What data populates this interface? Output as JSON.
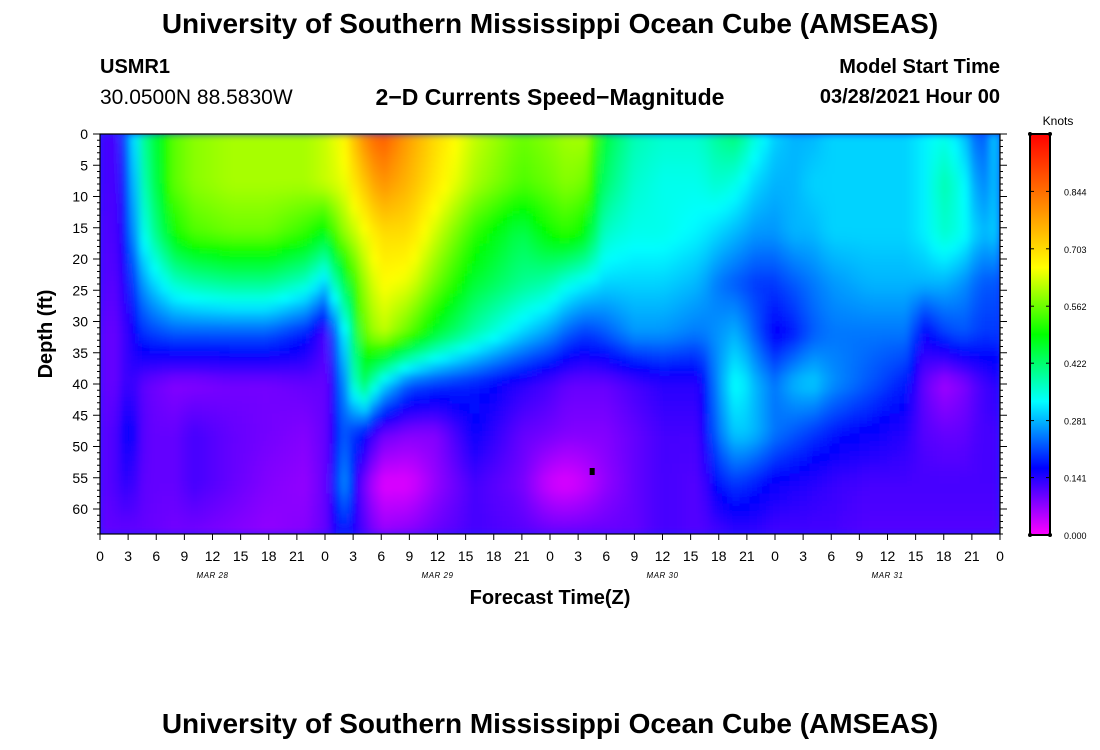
{
  "header": {
    "title": "University of Southern Mississippi Ocean Cube (AMSEAS)",
    "station_id": "USMR1",
    "station_coords": "30.0500N  88.5830W",
    "chart_title": "2−D Currents Speed−Magnitude",
    "start_label": "Model Start Time",
    "start_value": "03/28/2021 Hour 00"
  },
  "footer": {
    "title": "University of Southern Mississippi Ocean Cube (AMSEAS)"
  },
  "chart_data": {
    "type": "heatmap",
    "title": "2−D Currents Speed−Magnitude",
    "xlabel": "Forecast Time(Z)",
    "ylabel": "Depth (ft)",
    "x_range_hours": [
      0,
      96
    ],
    "x_tick_step_hours": 3,
    "x_tick_labels": [
      "0",
      "3",
      "6",
      "9",
      "12",
      "15",
      "18",
      "21",
      "0",
      "3",
      "6",
      "9",
      "12",
      "15",
      "18",
      "21",
      "0",
      "3",
      "6",
      "9",
      "12",
      "15",
      "18",
      "21",
      "0",
      "3",
      "6",
      "9",
      "12",
      "15",
      "18",
      "21",
      "0"
    ],
    "date_labels": [
      {
        "label": "MAR 28",
        "hour": 12
      },
      {
        "label": "MAR 29",
        "hour": 36
      },
      {
        "label": "MAR 30",
        "hour": 60
      },
      {
        "label": "MAR 31",
        "hour": 84
      }
    ],
    "y_range_ft": [
      0,
      64
    ],
    "y_ticks": [
      0,
      5,
      10,
      15,
      20,
      25,
      30,
      35,
      40,
      45,
      50,
      55,
      60
    ],
    "colorbar": {
      "unit": "Knots",
      "range": [
        0.0,
        0.985
      ],
      "tick_values": [
        0.0,
        0.141,
        0.281,
        0.422,
        0.562,
        0.703,
        0.844
      ],
      "tick_labels": [
        "0.000",
        "0.141",
        "0.281",
        "0.422",
        "0.562",
        "0.703",
        "0.844"
      ],
      "colormap": [
        "#ff00ff",
        "#0000ff",
        "#00ffff",
        "#00ff00",
        "#ffff00",
        "#ff8000",
        "#ff0000"
      ]
    },
    "depths_ft": [
      0,
      8,
      16,
      24,
      32,
      40,
      48,
      56,
      64
    ],
    "times_h": [
      0,
      2,
      3,
      5,
      8,
      10,
      14,
      18,
      22,
      24,
      26,
      28,
      30,
      33,
      36,
      40,
      45,
      48,
      50,
      52,
      54,
      57,
      60,
      64,
      66,
      68,
      70,
      72,
      74,
      76,
      78,
      82,
      86,
      88,
      90,
      92,
      94,
      96
    ],
    "speed_knots": [
      [
        0.12,
        0.12,
        0.25,
        0.42,
        0.55,
        0.58,
        0.6,
        0.6,
        0.6,
        0.62,
        0.66,
        0.8,
        0.88,
        0.78,
        0.7,
        0.62,
        0.56,
        0.58,
        0.6,
        0.6,
        0.45,
        0.38,
        0.36,
        0.36,
        0.4,
        0.42,
        0.35,
        0.3,
        0.28,
        0.28,
        0.3,
        0.3,
        0.3,
        0.32,
        0.34,
        0.3,
        0.2,
        0.32
      ],
      [
        0.12,
        0.12,
        0.22,
        0.4,
        0.55,
        0.58,
        0.6,
        0.6,
        0.6,
        0.62,
        0.64,
        0.72,
        0.8,
        0.75,
        0.68,
        0.6,
        0.54,
        0.56,
        0.58,
        0.56,
        0.42,
        0.36,
        0.34,
        0.34,
        0.36,
        0.34,
        0.3,
        0.28,
        0.28,
        0.3,
        0.3,
        0.3,
        0.3,
        0.32,
        0.38,
        0.34,
        0.24,
        0.3
      ],
      [
        0.11,
        0.12,
        0.2,
        0.36,
        0.5,
        0.54,
        0.56,
        0.56,
        0.52,
        0.48,
        0.58,
        0.64,
        0.7,
        0.7,
        0.62,
        0.52,
        0.44,
        0.5,
        0.52,
        0.48,
        0.36,
        0.34,
        0.34,
        0.32,
        0.3,
        0.28,
        0.26,
        0.26,
        0.28,
        0.28,
        0.3,
        0.3,
        0.3,
        0.32,
        0.36,
        0.34,
        0.28,
        0.3
      ],
      [
        0.11,
        0.11,
        0.16,
        0.28,
        0.36,
        0.38,
        0.4,
        0.4,
        0.36,
        0.3,
        0.44,
        0.58,
        0.66,
        0.64,
        0.56,
        0.46,
        0.4,
        0.38,
        0.34,
        0.32,
        0.3,
        0.3,
        0.3,
        0.28,
        0.24,
        0.22,
        0.2,
        0.2,
        0.22,
        0.24,
        0.26,
        0.28,
        0.28,
        0.28,
        0.28,
        0.26,
        0.22,
        0.22
      ],
      [
        0.1,
        0.1,
        0.14,
        0.2,
        0.22,
        0.22,
        0.22,
        0.22,
        0.18,
        0.12,
        0.3,
        0.54,
        0.62,
        0.55,
        0.46,
        0.38,
        0.3,
        0.26,
        0.22,
        0.2,
        0.22,
        0.26,
        0.26,
        0.24,
        0.26,
        0.28,
        0.22,
        0.16,
        0.18,
        0.22,
        0.24,
        0.24,
        0.24,
        0.16,
        0.2,
        0.22,
        0.2,
        0.2
      ],
      [
        0.1,
        0.1,
        0.14,
        0.1,
        0.08,
        0.08,
        0.09,
        0.09,
        0.1,
        0.1,
        0.24,
        0.45,
        0.32,
        0.22,
        0.2,
        0.18,
        0.14,
        0.12,
        0.1,
        0.1,
        0.1,
        0.12,
        0.14,
        0.14,
        0.26,
        0.34,
        0.28,
        0.24,
        0.28,
        0.3,
        0.26,
        0.22,
        0.18,
        0.1,
        0.06,
        0.08,
        0.12,
        0.14
      ],
      [
        0.1,
        0.12,
        0.18,
        0.1,
        0.1,
        0.12,
        0.1,
        0.09,
        0.08,
        0.1,
        0.22,
        0.18,
        0.1,
        0.08,
        0.08,
        0.16,
        0.1,
        0.09,
        0.08,
        0.08,
        0.08,
        0.1,
        0.12,
        0.12,
        0.24,
        0.3,
        0.28,
        0.24,
        0.22,
        0.2,
        0.18,
        0.16,
        0.14,
        0.11,
        0.1,
        0.1,
        0.12,
        0.12
      ],
      [
        0.1,
        0.12,
        0.14,
        0.1,
        0.1,
        0.12,
        0.1,
        0.08,
        0.07,
        0.1,
        0.26,
        0.1,
        0.02,
        0.02,
        0.07,
        0.12,
        0.09,
        0.03,
        0.02,
        0.04,
        0.07,
        0.1,
        0.12,
        0.11,
        0.18,
        0.2,
        0.18,
        0.16,
        0.15,
        0.14,
        0.13,
        0.12,
        0.12,
        0.12,
        0.12,
        0.12,
        0.12,
        0.12
      ],
      [
        0.1,
        0.1,
        0.1,
        0.1,
        0.09,
        0.09,
        0.08,
        0.07,
        0.08,
        0.1,
        0.18,
        0.12,
        0.07,
        0.08,
        0.1,
        0.12,
        0.11,
        0.1,
        0.1,
        0.1,
        0.1,
        0.1,
        0.12,
        0.11,
        0.12,
        0.13,
        0.13,
        0.12,
        0.12,
        0.12,
        0.12,
        0.11,
        0.11,
        0.11,
        0.11,
        0.11,
        0.11,
        0.11
      ]
    ]
  }
}
